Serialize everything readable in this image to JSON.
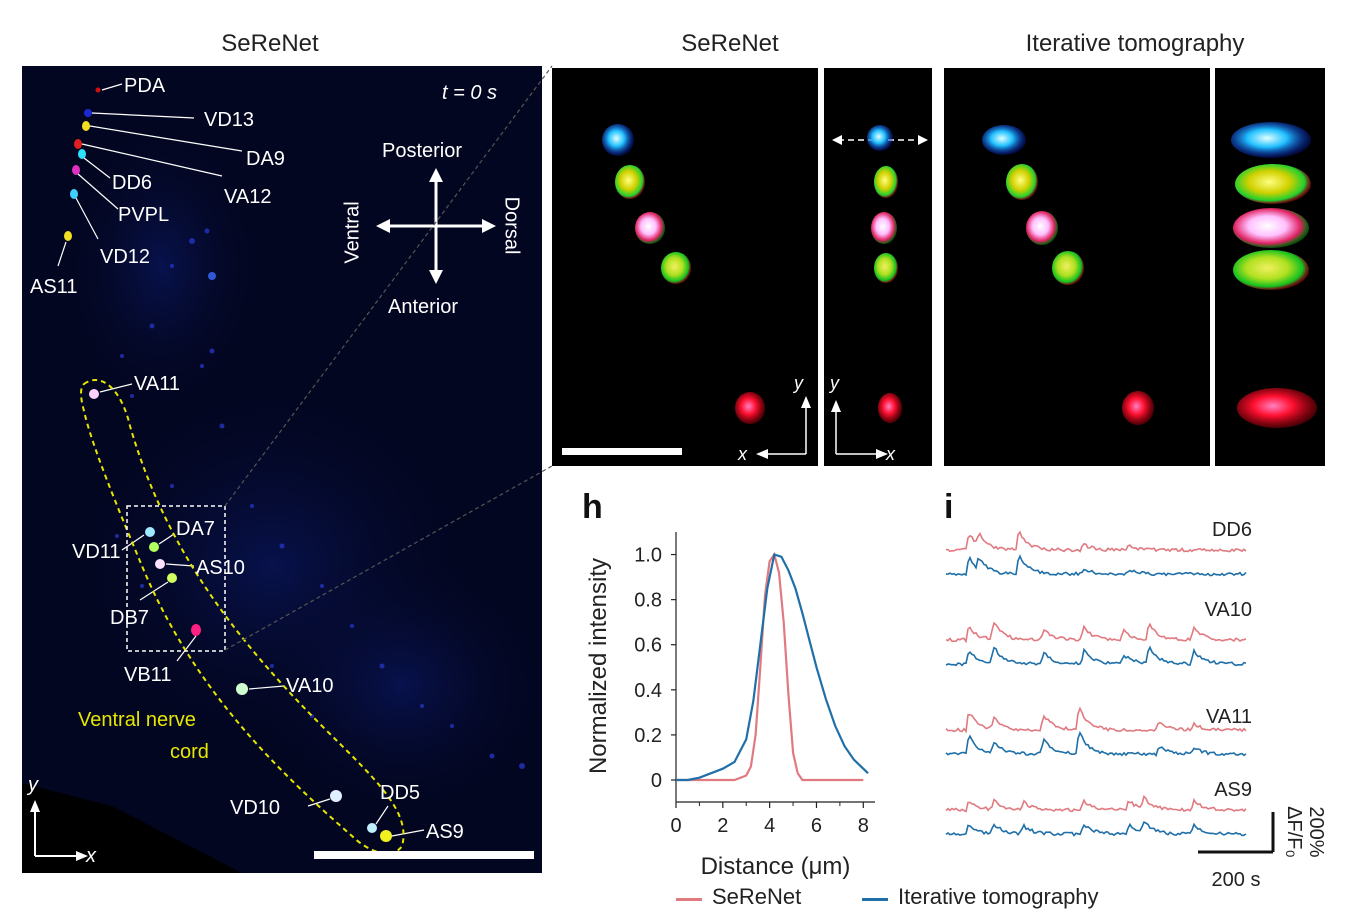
{
  "titles": {
    "left": "SeReNet",
    "mid": "SeReNet",
    "right": "Iterative tomography"
  },
  "worm": {
    "time": "t = 0 s",
    "neurons": [
      "PDA",
      "VD13",
      "DA9",
      "DD6",
      "VA12",
      "PVPL",
      "VD12",
      "AS11",
      "VA11",
      "DA7",
      "VD11",
      "AS10",
      "DB7",
      "VB11",
      "VA10",
      "VD10",
      "DD5",
      "AS9"
    ],
    "orientation": {
      "top": "Posterior",
      "bottom": "Anterior",
      "left": "Ventral",
      "right": "Dorsal"
    },
    "nerve_cord_label_1": "Ventral nerve",
    "nerve_cord_label_2": "cord",
    "axis_y": "y",
    "axis_x": "x"
  },
  "zoom": {
    "axis_y": "y",
    "axis_x": "x",
    "axis_y2": "y",
    "axis_x2": "x"
  },
  "panel_h": {
    "letter": "h",
    "chart_data": {
      "type": "line",
      "xlabel": "Distance (μm)",
      "ylabel": "Normalized intensity",
      "xlim": [
        0,
        8.5
      ],
      "ylim": [
        0,
        1.1
      ],
      "xticks": [
        "0",
        "2",
        "4",
        "6",
        "8"
      ],
      "yticks": [
        "0",
        "0.2",
        "0.4",
        "0.6",
        "0.8",
        "1.0"
      ],
      "series": [
        {
          "name": "SeReNet",
          "color": "#e07a80",
          "x": [
            0,
            0.5,
            1,
            1.5,
            2,
            2.5,
            3,
            3.2,
            3.4,
            3.6,
            3.8,
            4.0,
            4.2,
            4.4,
            4.6,
            4.8,
            5.0,
            5.2,
            5.4,
            5.6,
            6,
            7,
            8
          ],
          "y": [
            0,
            0,
            0,
            0,
            0,
            0,
            0.02,
            0.06,
            0.2,
            0.5,
            0.82,
            0.97,
            1.0,
            0.92,
            0.7,
            0.38,
            0.12,
            0.03,
            0.0,
            0,
            0,
            0,
            0
          ]
        },
        {
          "name": "Iterative tomography",
          "color": "#1f6fa8",
          "x": [
            0,
            0.5,
            1,
            1.5,
            2,
            2.5,
            3,
            3.3,
            3.6,
            3.9,
            4.2,
            4.5,
            4.8,
            5.1,
            5.4,
            5.7,
            6.0,
            6.4,
            6.8,
            7.2,
            7.6,
            8.0,
            8.2
          ],
          "y": [
            0,
            0,
            0.01,
            0.03,
            0.05,
            0.08,
            0.18,
            0.35,
            0.6,
            0.85,
            1.0,
            0.99,
            0.93,
            0.85,
            0.74,
            0.62,
            0.5,
            0.36,
            0.24,
            0.15,
            0.09,
            0.05,
            0.03
          ]
        }
      ]
    }
  },
  "panel_i": {
    "letter": "i",
    "traces": [
      "DD6",
      "VA10",
      "VA11",
      "AS9"
    ],
    "scale_y": "200%",
    "scale_y_unit": "ΔF/F₀",
    "scale_x": "200 s"
  },
  "legend": {
    "serenet": "SeReNet",
    "iterative": "Iterative tomography"
  }
}
